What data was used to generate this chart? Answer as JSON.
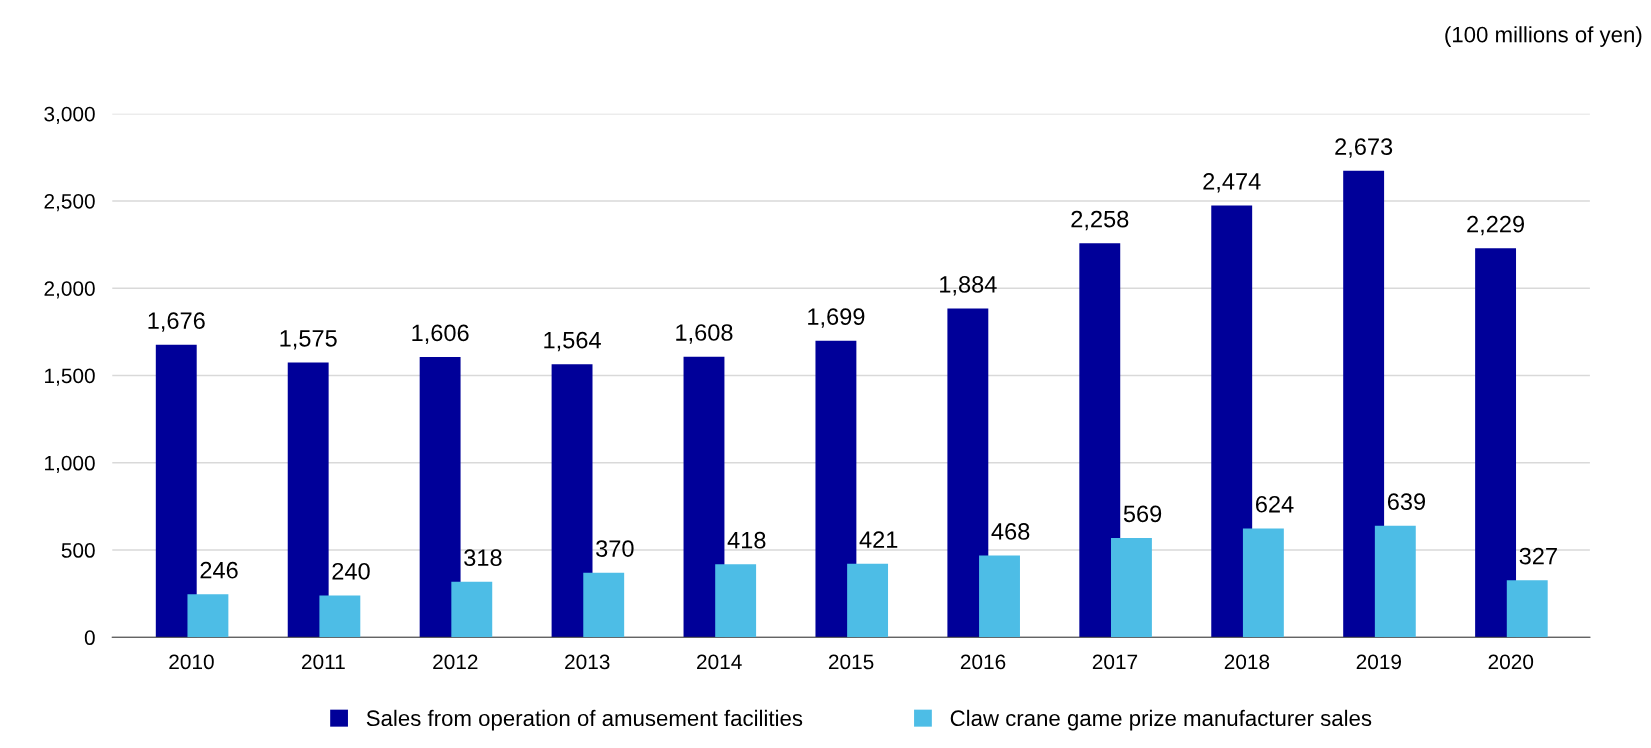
{
  "chart_data": {
    "type": "bar",
    "categories": [
      "2010",
      "2011",
      "2012",
      "2013",
      "2014",
      "2015",
      "2016",
      "2017",
      "2018",
      "2019",
      "2020"
    ],
    "series": [
      {
        "name": "Sales from operation of amusement facilities",
        "color": "#000099",
        "values": [
          1676,
          1575,
          1606,
          1564,
          1608,
          1699,
          1884,
          2258,
          2474,
          2673,
          2229
        ],
        "value_labels": [
          "1,676",
          "1,575",
          "1,606",
          "1,564",
          "1,608",
          "1,699",
          "1,884",
          "2,258",
          "2,474",
          "2,673",
          "2,229"
        ]
      },
      {
        "name": "Claw crane game prize manufacturer sales",
        "color": "#4dbde6",
        "values": [
          246,
          240,
          318,
          370,
          418,
          421,
          468,
          569,
          624,
          639,
          327
        ],
        "value_labels": [
          "246",
          "240",
          "318",
          "370",
          "418",
          "421",
          "468",
          "569",
          "624",
          "639",
          "327"
        ]
      }
    ],
    "ylim": [
      0,
      3000
    ],
    "yticks": [
      {
        "value": 0,
        "label": "0"
      },
      {
        "value": 500,
        "label": "500"
      },
      {
        "value": 1000,
        "label": "1,000"
      },
      {
        "value": 1500,
        "label": "1,500"
      },
      {
        "value": 2000,
        "label": "2,000"
      },
      {
        "value": 2500,
        "label": "2,500"
      },
      {
        "value": 3000,
        "label": "3,000"
      }
    ],
    "grid": "y",
    "legend": "bottom",
    "annotations": [
      "(100 millions of yen)"
    ]
  }
}
